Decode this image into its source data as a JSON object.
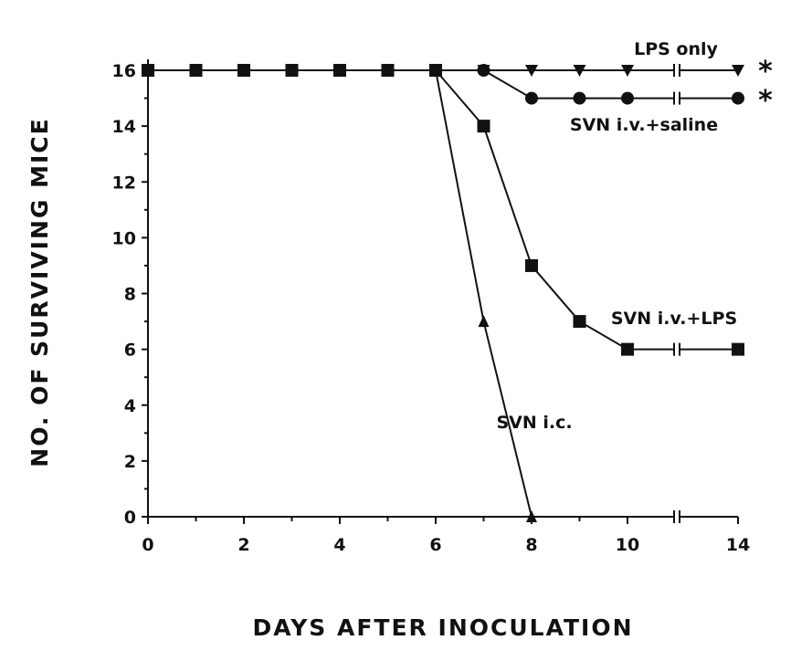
{
  "chart_data": {
    "type": "line",
    "title": "",
    "xlabel": "DAYS AFTER INOCULATION",
    "ylabel": "NO. OF SURVIVING MICE",
    "xlim": [
      0,
      14
    ],
    "ylim": [
      0,
      16
    ],
    "x_ticks": [
      0,
      2,
      4,
      6,
      8,
      10,
      14
    ],
    "y_ticks": [
      0,
      2,
      4,
      6,
      8,
      10,
      12,
      14,
      16
    ],
    "axis_break": "between day 10 and day 14",
    "grid": false,
    "series": [
      {
        "name": "LPS only",
        "marker": "triangle-down",
        "x": [
          0,
          1,
          2,
          3,
          4,
          5,
          6,
          7,
          8,
          9,
          10,
          14
        ],
        "y": [
          16,
          16,
          16,
          16,
          16,
          16,
          16,
          16,
          16,
          16,
          16,
          16
        ],
        "annotation": "*"
      },
      {
        "name": "SVN i.v.+saline",
        "marker": "circle",
        "x": [
          0,
          1,
          2,
          3,
          4,
          5,
          6,
          7,
          8,
          9,
          10,
          14
        ],
        "y": [
          16,
          16,
          16,
          16,
          16,
          16,
          16,
          16,
          15,
          15,
          15,
          15
        ],
        "annotation": "*"
      },
      {
        "name": "SVN i.v.+LPS",
        "marker": "square",
        "x": [
          0,
          1,
          2,
          3,
          4,
          5,
          6,
          7,
          8,
          9,
          10,
          14
        ],
        "y": [
          16,
          16,
          16,
          16,
          16,
          16,
          16,
          14,
          9,
          7,
          6,
          6
        ],
        "annotation": ""
      },
      {
        "name": "SVN i.c.",
        "marker": "triangle-up",
        "x": [
          0,
          1,
          2,
          3,
          4,
          5,
          6,
          7,
          8
        ],
        "y": [
          16,
          16,
          16,
          16,
          16,
          16,
          16,
          7,
          0
        ],
        "annotation": ""
      }
    ]
  }
}
